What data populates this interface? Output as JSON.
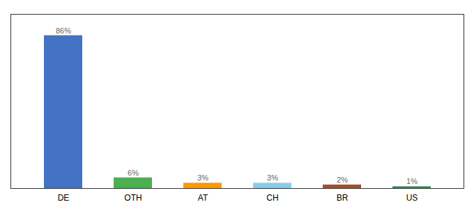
{
  "chart_data": {
    "type": "bar",
    "categories": [
      "DE",
      "OTH",
      "AT",
      "CH",
      "BR",
      "US"
    ],
    "values": [
      86,
      6,
      3,
      3,
      2,
      1
    ],
    "value_labels": [
      "86%",
      "6%",
      "3%",
      "3%",
      "2%",
      "1%"
    ],
    "colors": [
      "#4472c4",
      "#4caf50",
      "#ff9800",
      "#87ceeb",
      "#a0522d",
      "#2e8b57"
    ],
    "ylim": [
      0,
      98
    ],
    "grid": false,
    "data_labels": true,
    "tick_labels": "x"
  }
}
